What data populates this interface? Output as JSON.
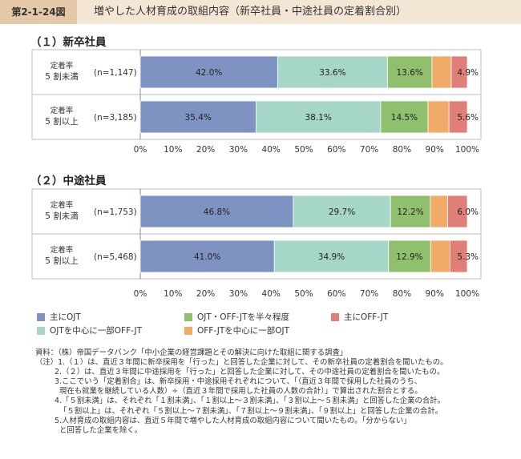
{
  "header": {
    "figure_no": "第2-1-24図",
    "title": "増やした人材育成の取組内容（新卒社員・中途社員の定着割合別）"
  },
  "chart_data": [
    {
      "type": "bar",
      "orientation": "horizontal",
      "stacked": true,
      "title": "（１）新卒社員",
      "categories": [
        {
          "label_line1": "定着率",
          "label_line2": "5 割未満",
          "n": "(n=1,147)"
        },
        {
          "label_line1": "定着率",
          "label_line2": "5 割以上",
          "n": "(n=3,185)"
        }
      ],
      "series": [
        {
          "name": "主にOJT",
          "color": "#7f93c3",
          "values": [
            42.0,
            35.4
          ],
          "labels": [
            "42.0%",
            "35.4%"
          ]
        },
        {
          "name": "OJTを中心に一部OFF-JT",
          "color": "#a5d6c8",
          "values": [
            33.6,
            38.1
          ],
          "labels": [
            "33.6%",
            "38.1%"
          ]
        },
        {
          "name": "OJT・OFF-JTを半々程度",
          "color": "#90c06d",
          "values": [
            13.6,
            14.5
          ],
          "labels": [
            "13.6%",
            "14.5%"
          ]
        },
        {
          "name": "OFF-JTを中心に一部OJT",
          "color": "#f0ab69",
          "values": [
            5.9,
            6.4
          ],
          "labels": [
            "",
            ""
          ]
        },
        {
          "name": "主にOFF-JT",
          "color": "#e27e78",
          "values": [
            4.9,
            5.6
          ],
          "labels": [
            "4.9%",
            "5.6%"
          ]
        }
      ],
      "xlim": [
        0,
        100
      ],
      "xticks": [
        "0%",
        "10%",
        "20%",
        "30%",
        "40%",
        "50%",
        "60%",
        "70%",
        "80%",
        "90%",
        "100%"
      ],
      "grid": false
    },
    {
      "type": "bar",
      "orientation": "horizontal",
      "stacked": true,
      "title": "（２）中途社員",
      "categories": [
        {
          "label_line1": "定着率",
          "label_line2": "5 割未満",
          "n": "(n=1,753)"
        },
        {
          "label_line1": "定着率",
          "label_line2": "5 割以上",
          "n": "(n=5,468)"
        }
      ],
      "series": [
        {
          "name": "主にOJT",
          "color": "#7f93c3",
          "values": [
            46.8,
            41.0
          ],
          "labels": [
            "46.8%",
            "41.0%"
          ]
        },
        {
          "name": "OJTを中心に一部OFF-JT",
          "color": "#a5d6c8",
          "values": [
            29.7,
            34.9
          ],
          "labels": [
            "29.7%",
            "34.9%"
          ]
        },
        {
          "name": "OJT・OFF-JTを半々程度",
          "color": "#90c06d",
          "values": [
            12.2,
            12.9
          ],
          "labels": [
            "12.2%",
            "12.9%"
          ]
        },
        {
          "name": "OFF-JTを中心に一部OJT",
          "color": "#f0ab69",
          "values": [
            5.3,
            5.9
          ],
          "labels": [
            "",
            ""
          ]
        },
        {
          "name": "主にOFF-JT",
          "color": "#e27e78",
          "values": [
            6.0,
            5.3
          ],
          "labels": [
            "6.0%",
            "5.3%"
          ]
        }
      ],
      "xlim": [
        0,
        100
      ],
      "xticks": [
        "0%",
        "10%",
        "20%",
        "30%",
        "40%",
        "50%",
        "60%",
        "70%",
        "80%",
        "90%",
        "100%"
      ],
      "grid": false
    }
  ],
  "legend": {
    "placement": "bottom",
    "items": [
      {
        "label": "主にOJT",
        "color": "#7f93c3"
      },
      {
        "label": "OJT・OFF-JTを半々程度",
        "color": "#90c06d"
      },
      {
        "label": "主にOFF-JT",
        "color": "#e27e78"
      },
      {
        "label": "OJTを中心に一部OFF-JT",
        "color": "#a5d6c8"
      },
      {
        "label": "OFF-JTを中心に一部OJT",
        "color": "#f0ab69"
      }
    ]
  },
  "notes": [
    "資料：（株）帝国データバンク「中小企業の経営課題とその解決に向けた取組に関する調査」",
    "（注）1.（１）は、直近３年間に新卒採用を「行った」と回答した企業に対して、その新卒社員の定着割合を聞いたもの。",
    "2.（２）は、直近３年間に中途採用を「行った」と回答した企業に対して、その中途社員の定着割合を聞いたもの。",
    "3.ここでいう「定着割合」は、新卒採用・中途採用それぞれについて、「（直近３年間で採用した社員のうち、",
    "現在も就業を継続している人数）÷（直近３年間で採用した社員の人数の合計）」で算出された割合とする。",
    "4.「５割未満」は、それぞれ「１割未満」、「１割以上～３割未満」、「３割以上～５割未満」と回答した企業の合計。",
    "「５割以上」は、それぞれ「５割以上～７割未満」、「７割以上～９割未満」、「９割以上」と回答した企業の合計。",
    "5.人材育成の取組内容は、直近５年間で増やした人材育成の取組内容について聞いたもの。「分からない」",
    "と回答した企業を除く。"
  ]
}
